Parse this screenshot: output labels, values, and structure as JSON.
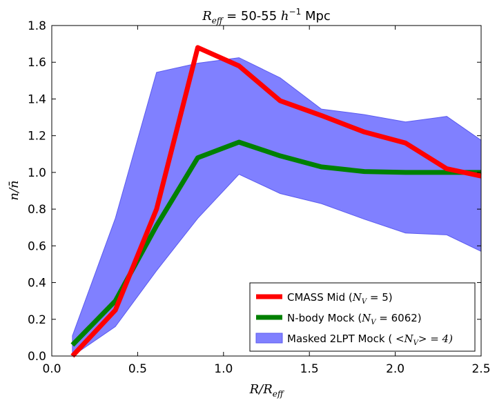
{
  "chart_data": {
    "type": "line",
    "title": "R_eff = 50-55 h^-1 Mpc",
    "title_parts": {
      "lhs": "R",
      "lhs_sub": "eff",
      "mid": " = 50-55 ",
      "h": "h",
      "h_sup": "−1",
      "unit": " Mpc"
    },
    "xlabel": "R/R_eff",
    "xlabel_parts": {
      "main": "R/R",
      "sub": "eff"
    },
    "ylabel": "n/n̄",
    "ylabel_parts": {
      "main": "n/n̄"
    },
    "xlim": [
      0.0,
      2.5
    ],
    "ylim": [
      0.0,
      1.8
    ],
    "xticks": [
      0.0,
      0.5,
      1.0,
      1.5,
      2.0,
      2.5
    ],
    "xtick_labels": [
      "0.0",
      "0.5",
      "1.0",
      "1.5",
      "2.0",
      "2.5"
    ],
    "yticks": [
      0.0,
      0.2,
      0.4,
      0.6,
      0.8,
      1.0,
      1.2,
      1.4,
      1.6,
      1.8
    ],
    "ytick_labels": [
      "0.0",
      "0.2",
      "0.4",
      "0.6",
      "0.8",
      "1.0",
      "1.2",
      "1.4",
      "1.6",
      "1.8"
    ],
    "grid": false,
    "legend_position": "lower-right",
    "band": {
      "name": "Masked 2LPT Mock (<N_V> = 4)",
      "legend_parts": {
        "pre": "Masked 2LPT Mock ( ",
        "sym": "<N",
        "sub": "V",
        "post_sym": "> = 4)"
      },
      "color": "#8080ff",
      "edge_color": "#5a5aef",
      "x": [
        0.12,
        0.37,
        0.61,
        0.85,
        1.09,
        1.33,
        1.57,
        1.82,
        2.06,
        2.3,
        2.5
      ],
      "upper": [
        0.11,
        0.75,
        1.545,
        1.595,
        1.625,
        1.515,
        1.345,
        1.315,
        1.275,
        1.305,
        1.175
      ],
      "lower": [
        0.0,
        0.16,
        0.465,
        0.75,
        0.99,
        0.885,
        0.83,
        0.745,
        0.67,
        0.66,
        0.57
      ]
    },
    "series": [
      {
        "name": "CMASS Mid (N_V = 5)",
        "legend_parts": {
          "pre": "CMASS Mid (",
          "sym": "N",
          "sub": "V",
          "post": " = 5)"
        },
        "color": "#ff0000",
        "x": [
          0.12,
          0.37,
          0.61,
          0.85,
          1.09,
          1.33,
          1.57,
          1.82,
          2.06,
          2.3,
          2.5
        ],
        "values": [
          0.0,
          0.25,
          0.8,
          1.68,
          1.58,
          1.39,
          1.31,
          1.22,
          1.16,
          1.02,
          0.98
        ]
      },
      {
        "name": "N-body Mock (N_V = 6062)",
        "legend_parts": {
          "pre": "N-body Mock (",
          "sym": "N",
          "sub": "V",
          "post": " = 6062)"
        },
        "color": "#008000",
        "x": [
          0.12,
          0.37,
          0.61,
          0.85,
          1.09,
          1.33,
          1.57,
          1.82,
          2.06,
          2.3,
          2.5
        ],
        "values": [
          0.06,
          0.3,
          0.71,
          1.08,
          1.165,
          1.09,
          1.03,
          1.005,
          1.0,
          1.0,
          1.0
        ]
      }
    ]
  }
}
